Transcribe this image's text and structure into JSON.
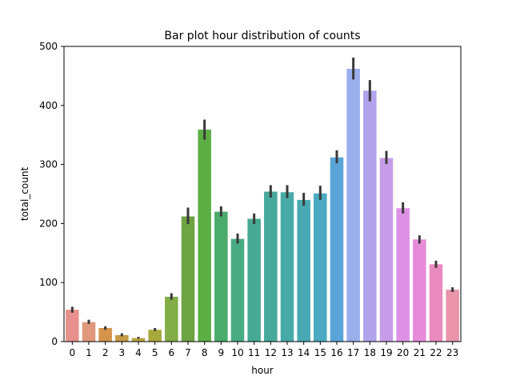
{
  "chart_data": {
    "type": "bar",
    "title": "Bar plot hour distribution of counts",
    "xlabel": "hour",
    "ylabel": "total_count",
    "ylim": [
      0,
      500
    ],
    "yticks": [
      0,
      100,
      200,
      300,
      400,
      500
    ],
    "grid": false,
    "legend": "none",
    "categories": [
      "0",
      "1",
      "2",
      "3",
      "4",
      "5",
      "6",
      "7",
      "8",
      "9",
      "10",
      "11",
      "12",
      "13",
      "14",
      "15",
      "16",
      "17",
      "18",
      "19",
      "20",
      "21",
      "22",
      "23"
    ],
    "values": [
      54,
      33,
      23,
      11,
      6,
      20,
      76,
      212,
      359,
      220,
      174,
      208,
      254,
      253,
      240,
      251,
      312,
      462,
      425,
      311,
      226,
      173,
      131,
      88
    ],
    "error_low": [
      49,
      30,
      20,
      9,
      5,
      18,
      71,
      199,
      342,
      212,
      166,
      199,
      244,
      243,
      230,
      240,
      302,
      444,
      407,
      301,
      217,
      166,
      125,
      84
    ],
    "error_high": [
      59,
      37,
      26,
      14,
      8,
      23,
      82,
      227,
      376,
      229,
      183,
      217,
      265,
      265,
      252,
      264,
      324,
      481,
      443,
      323,
      236,
      180,
      137,
      92
    ],
    "colors": [
      "#e8918c",
      "#e0977a",
      "#d4944a",
      "#c59b45",
      "#b8a23e",
      "#a7a83c",
      "#82ad47",
      "#6ea443",
      "#5cae45",
      "#4aab6a",
      "#48ab84",
      "#46aa93",
      "#47a99c",
      "#48aaa7",
      "#49a9b3",
      "#4baac2",
      "#5aa5d8",
      "#9baeec",
      "#b0a3ec",
      "#c69ce8",
      "#dc91e5",
      "#e68bd9",
      "#ea8bbf",
      "#e994ab"
    ],
    "error_color": "#3a3a3a"
  }
}
